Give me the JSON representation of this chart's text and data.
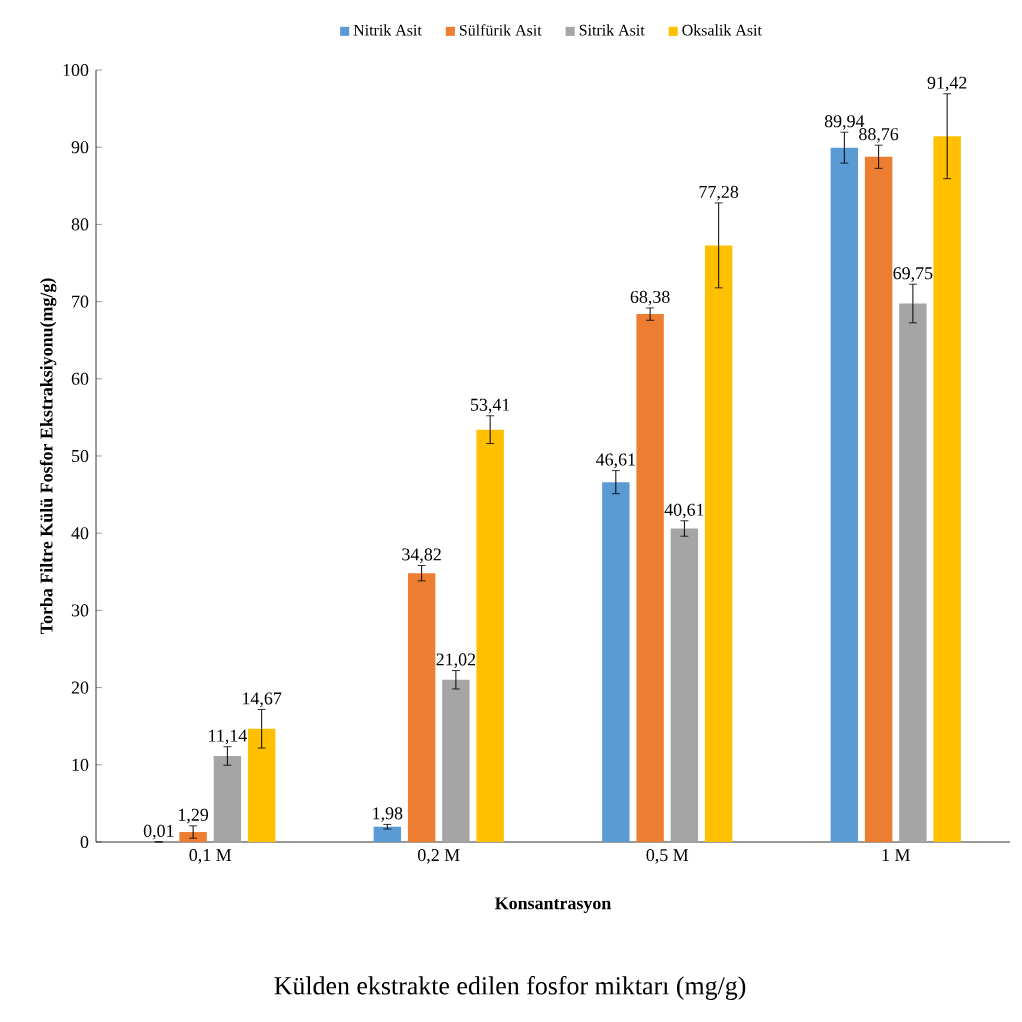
{
  "chart_data": {
    "type": "bar",
    "xlabel": "Konsantrasyon",
    "ylabel": "Torba Filtre Külü Fosfor Ekstraksiyonu(mg/g)",
    "categories": [
      "0,1 M",
      "0,2 M",
      "0,5 M",
      "1 M"
    ],
    "series": [
      {
        "name": "Nitrik Asit",
        "color": "#5b9bd5",
        "values": [
          0.01,
          1.98,
          46.61,
          89.94
        ],
        "errors": [
          null,
          0.3,
          1.5,
          2
        ],
        "value_labels": [
          "0,01",
          "1,98",
          "46,61",
          "89,94"
        ]
      },
      {
        "name": "Sülfürik Asit",
        "color": "#ed7d31",
        "values": [
          1.29,
          34.82,
          68.38,
          88.76
        ],
        "errors": [
          0.8,
          1,
          0.8,
          1.5
        ],
        "value_labels": [
          "1,29",
          "34,82",
          "68,38",
          "88,76"
        ]
      },
      {
        "name": "Sitrik Asit",
        "color": "#a5a5a5",
        "values": [
          11.14,
          21.02,
          40.61,
          69.75
        ],
        "errors": [
          1.2,
          1.2,
          1,
          2.5
        ],
        "value_labels": [
          "11,14",
          "21,02",
          "40,61",
          "69,75"
        ]
      },
      {
        "name": "Oksalik Asit",
        "color": "#ffc000",
        "values": [
          14.67,
          53.41,
          77.28,
          91.42
        ],
        "errors": [
          2.5,
          1.8,
          5.5,
          5.5
        ],
        "value_labels": [
          "14,67",
          "53,41",
          "77,28",
          "91,42"
        ]
      }
    ],
    "ylim": [
      0,
      100
    ],
    "yticks": [
      0,
      10,
      20,
      30,
      40,
      50,
      60,
      70,
      80,
      90,
      100
    ],
    "legend": "top",
    "annotations": [
      "Külden ekstrakte edilen fosfor miktarı (mg/g)"
    ]
  }
}
